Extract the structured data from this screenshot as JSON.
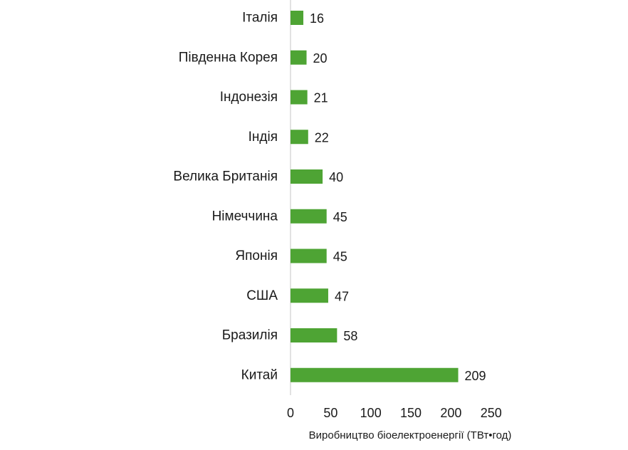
{
  "chart_data": {
    "type": "bar",
    "orientation": "horizontal",
    "categories": [
      "Італія",
      "Південна Корея",
      "Індонезія",
      "Індія",
      "Велика Британія",
      "Німеччина",
      "Японія",
      "США",
      "Бразилія",
      "Китай"
    ],
    "values": [
      16,
      20,
      21,
      22,
      40,
      45,
      45,
      47,
      58,
      209
    ],
    "xlabel": "Виробництво біоелектроенергії (ТВт•год)",
    "ylabel": "",
    "xlim": [
      0,
      250
    ],
    "xticks": [
      0,
      50,
      100,
      150,
      200,
      250
    ],
    "grid": false,
    "bar_color": "#4ea434",
    "axis_color": "#d9d9d9"
  }
}
